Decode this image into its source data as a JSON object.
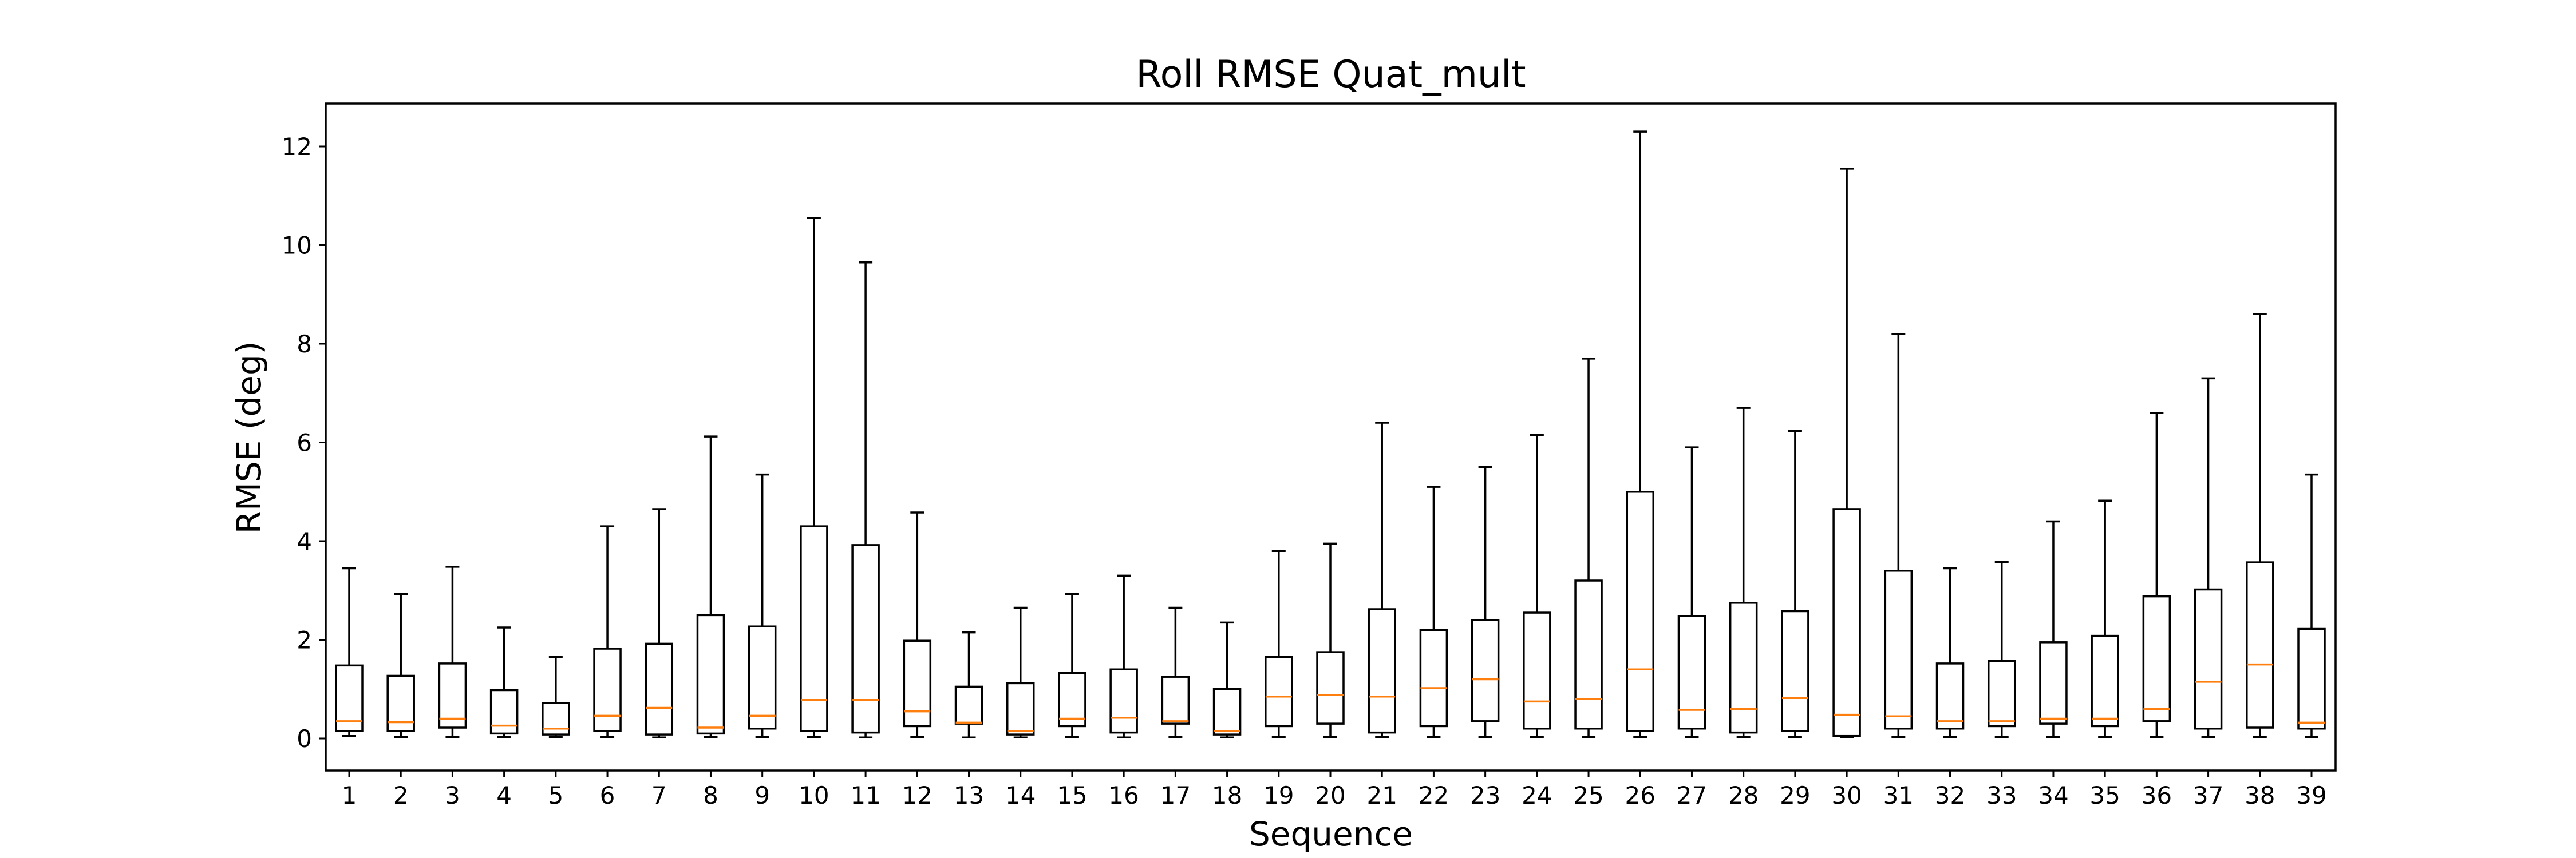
{
  "chart_data": {
    "type": "box",
    "title": "Roll RMSE Quat_mult",
    "xlabel": "Sequence",
    "ylabel": "RMSE (deg)",
    "ylim": [
      -0.6,
      12.9
    ],
    "yticks": [
      0,
      2,
      4,
      6,
      8,
      10,
      12
    ],
    "grid": false,
    "colors": {
      "box": "#000000",
      "median": "#ff7f0e"
    },
    "categories": [
      "1",
      "2",
      "3",
      "4",
      "5",
      "6",
      "7",
      "8",
      "9",
      "10",
      "11",
      "12",
      "13",
      "14",
      "15",
      "16",
      "17",
      "18",
      "19",
      "20",
      "21",
      "22",
      "23",
      "24",
      "25",
      "26",
      "27",
      "28",
      "29",
      "30",
      "31",
      "32",
      "33",
      "34",
      "35",
      "36",
      "37",
      "38",
      "39"
    ],
    "boxes": [
      {
        "whislo": 0.05,
        "q1": 0.15,
        "med": 0.35,
        "q3": 1.48,
        "whishi": 3.45
      },
      {
        "whislo": 0.03,
        "q1": 0.15,
        "med": 0.33,
        "q3": 1.27,
        "whishi": 2.93
      },
      {
        "whislo": 0.03,
        "q1": 0.22,
        "med": 0.4,
        "q3": 1.52,
        "whishi": 3.48
      },
      {
        "whislo": 0.03,
        "q1": 0.1,
        "med": 0.26,
        "q3": 0.98,
        "whishi": 2.25
      },
      {
        "whislo": 0.03,
        "q1": 0.08,
        "med": 0.2,
        "q3": 0.72,
        "whishi": 1.65
      },
      {
        "whislo": 0.03,
        "q1": 0.15,
        "med": 0.46,
        "q3": 1.82,
        "whishi": 4.3
      },
      {
        "whislo": 0.02,
        "q1": 0.08,
        "med": 0.62,
        "q3": 1.92,
        "whishi": 4.65
      },
      {
        "whislo": 0.03,
        "q1": 0.1,
        "med": 0.22,
        "q3": 2.5,
        "whishi": 6.12
      },
      {
        "whislo": 0.03,
        "q1": 0.2,
        "med": 0.46,
        "q3": 2.27,
        "whishi": 5.35
      },
      {
        "whislo": 0.03,
        "q1": 0.15,
        "med": 0.78,
        "q3": 4.3,
        "whishi": 10.55
      },
      {
        "whislo": 0.02,
        "q1": 0.12,
        "med": 0.78,
        "q3": 3.92,
        "whishi": 9.65
      },
      {
        "whislo": 0.03,
        "q1": 0.25,
        "med": 0.55,
        "q3": 1.98,
        "whishi": 4.58
      },
      {
        "whislo": 0.02,
        "q1": 0.3,
        "med": 0.32,
        "q3": 1.05,
        "whishi": 2.15
      },
      {
        "whislo": 0.02,
        "q1": 0.08,
        "med": 0.15,
        "q3": 1.12,
        "whishi": 2.65
      },
      {
        "whislo": 0.03,
        "q1": 0.25,
        "med": 0.4,
        "q3": 1.33,
        "whishi": 2.93
      },
      {
        "whislo": 0.02,
        "q1": 0.12,
        "med": 0.42,
        "q3": 1.4,
        "whishi": 3.3
      },
      {
        "whislo": 0.03,
        "q1": 0.3,
        "med": 0.35,
        "q3": 1.25,
        "whishi": 2.65
      },
      {
        "whislo": 0.02,
        "q1": 0.08,
        "med": 0.15,
        "q3": 1.0,
        "whishi": 2.35
      },
      {
        "whislo": 0.03,
        "q1": 0.25,
        "med": 0.85,
        "q3": 1.65,
        "whishi": 3.8
      },
      {
        "whislo": 0.03,
        "q1": 0.3,
        "med": 0.88,
        "q3": 1.75,
        "whishi": 3.95
      },
      {
        "whislo": 0.03,
        "q1": 0.12,
        "med": 0.85,
        "q3": 2.62,
        "whishi": 6.4
      },
      {
        "whislo": 0.03,
        "q1": 0.25,
        "med": 1.02,
        "q3": 2.2,
        "whishi": 5.1
      },
      {
        "whislo": 0.03,
        "q1": 0.35,
        "med": 1.2,
        "q3": 2.4,
        "whishi": 5.5
      },
      {
        "whislo": 0.03,
        "q1": 0.2,
        "med": 0.75,
        "q3": 2.55,
        "whishi": 6.15
      },
      {
        "whislo": 0.03,
        "q1": 0.2,
        "med": 0.8,
        "q3": 3.2,
        "whishi": 7.7
      },
      {
        "whislo": 0.03,
        "q1": 0.15,
        "med": 1.4,
        "q3": 5.0,
        "whishi": 12.3
      },
      {
        "whislo": 0.03,
        "q1": 0.2,
        "med": 0.58,
        "q3": 2.48,
        "whishi": 5.9
      },
      {
        "whislo": 0.03,
        "q1": 0.12,
        "med": 0.6,
        "q3": 2.75,
        "whishi": 6.7
      },
      {
        "whislo": 0.03,
        "q1": 0.15,
        "med": 0.82,
        "q3": 2.58,
        "whishi": 6.23
      },
      {
        "whislo": 0.02,
        "q1": 0.05,
        "med": 0.48,
        "q3": 4.65,
        "whishi": 11.55
      },
      {
        "whislo": 0.03,
        "q1": 0.2,
        "med": 0.45,
        "q3": 3.4,
        "whishi": 8.2
      },
      {
        "whislo": 0.03,
        "q1": 0.2,
        "med": 0.35,
        "q3": 1.52,
        "whishi": 3.45
      },
      {
        "whislo": 0.03,
        "q1": 0.25,
        "med": 0.35,
        "q3": 1.57,
        "whishi": 3.58
      },
      {
        "whislo": 0.03,
        "q1": 0.3,
        "med": 0.4,
        "q3": 1.95,
        "whishi": 4.4
      },
      {
        "whislo": 0.03,
        "q1": 0.25,
        "med": 0.4,
        "q3": 2.08,
        "whishi": 4.82
      },
      {
        "whislo": 0.03,
        "q1": 0.35,
        "med": 0.6,
        "q3": 2.88,
        "whishi": 6.6
      },
      {
        "whislo": 0.03,
        "q1": 0.2,
        "med": 1.15,
        "q3": 3.02,
        "whishi": 7.3
      },
      {
        "whislo": 0.03,
        "q1": 0.22,
        "med": 1.5,
        "q3": 3.57,
        "whishi": 8.6
      },
      {
        "whislo": 0.03,
        "q1": 0.2,
        "med": 0.32,
        "q3": 2.22,
        "whishi": 5.35
      }
    ]
  }
}
